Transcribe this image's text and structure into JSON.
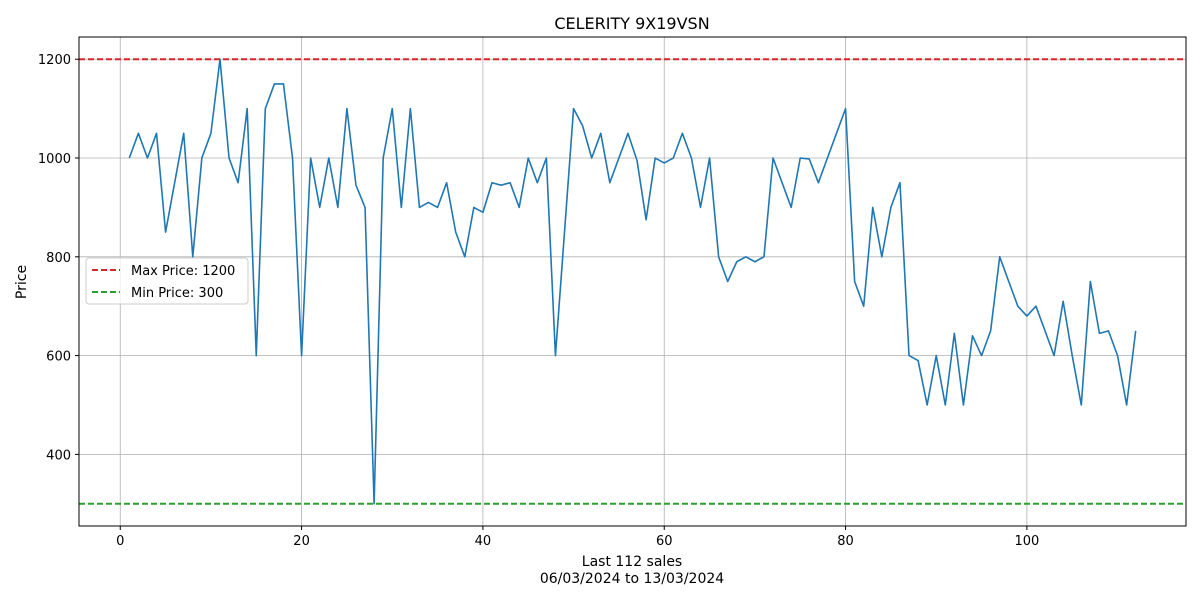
{
  "chart_data": {
    "type": "line",
    "title": "CELERITY 9X19VSN",
    "xlabel": "Last 112 sales",
    "xlabel_sub": "06/03/2024 to 13/03/2024",
    "ylabel": "Price",
    "xlim": [
      -4.55,
      117.55
    ],
    "ylim": [
      255,
      1245
    ],
    "xticks": [
      0,
      20,
      40,
      60,
      80,
      100
    ],
    "yticks": [
      400,
      600,
      800,
      1000,
      1200
    ],
    "grid": true,
    "legend_position": "center-left",
    "series": [
      {
        "color": "#1f77b4",
        "x": [
          1,
          2,
          3,
          4,
          5,
          6,
          7,
          8,
          9,
          10,
          11,
          12,
          13,
          14,
          15,
          16,
          17,
          18,
          19,
          20,
          21,
          22,
          23,
          24,
          25,
          26,
          27,
          28,
          29,
          30,
          31,
          32,
          33,
          34,
          35,
          36,
          37,
          38,
          39,
          40,
          41,
          42,
          43,
          44,
          45,
          46,
          47,
          48,
          49,
          50,
          51,
          52,
          53,
          54,
          55,
          56,
          57,
          58,
          59,
          60,
          61,
          62,
          63,
          64,
          65,
          66,
          67,
          68,
          69,
          70,
          71,
          72,
          73,
          74,
          75,
          76,
          77,
          78,
          79,
          80,
          81,
          82,
          83,
          84,
          85,
          86,
          87,
          88,
          89,
          90,
          91,
          92,
          93,
          94,
          95,
          96,
          97,
          98,
          99,
          100,
          101,
          102,
          103,
          104,
          105,
          106,
          107,
          108,
          109,
          110,
          111,
          112
        ],
        "values": [
          1000,
          1050,
          1000,
          1050,
          850,
          950,
          1050,
          800,
          1000,
          1050,
          1200,
          1000,
          950,
          1100,
          600,
          1100,
          1150,
          1150,
          1000,
          600,
          1000,
          900,
          1000,
          900,
          1100,
          945,
          900,
          300,
          1000,
          1100,
          900,
          1100,
          900,
          910,
          900,
          950,
          850,
          800,
          900,
          890,
          950,
          945,
          950,
          900,
          1000,
          950,
          1000,
          600,
          850,
          1100,
          1065,
          1000,
          1050,
          950,
          1000,
          1050,
          995,
          875,
          1000,
          990,
          1000,
          1050,
          1000,
          900,
          1000,
          800,
          750,
          790,
          800,
          790,
          800,
          1000,
          950,
          900,
          1000,
          998,
          950,
          1000,
          1050,
          1100,
          750,
          700,
          900,
          800,
          900,
          950,
          600,
          590,
          500,
          600,
          500,
          645,
          500,
          640,
          600,
          650,
          800,
          750,
          700,
          680,
          700,
          650,
          600,
          710,
          600,
          500,
          750,
          645,
          650,
          600,
          500,
          650
        ]
      }
    ],
    "reference_lines": [
      {
        "label": "Max Price: 1200",
        "value": 1200,
        "color": "#d62728"
      },
      {
        "label": "Min Price: 300",
        "value": 300,
        "color": "#2ca02c"
      }
    ]
  }
}
